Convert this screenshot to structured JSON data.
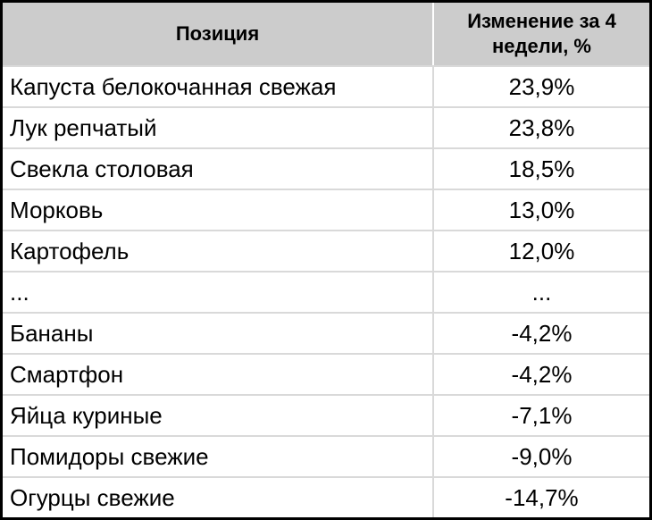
{
  "table": {
    "headers": {
      "position": "Позиция",
      "change": "Изменение за 4 недели, %"
    },
    "rows": [
      {
        "position": "Капуста белокочанная свежая",
        "change": "23,9%"
      },
      {
        "position": "Лук репчатый",
        "change": "23,8%"
      },
      {
        "position": "Свекла столовая",
        "change": "18,5%"
      },
      {
        "position": "Морковь",
        "change": "13,0%"
      },
      {
        "position": "Картофель",
        "change": "12,0%"
      },
      {
        "position": "...",
        "change": "..."
      },
      {
        "position": "Бананы",
        "change": "-4,2%"
      },
      {
        "position": "Смартфон",
        "change": "-4,2%"
      },
      {
        "position": "Яйца куриные",
        "change": "-7,1%"
      },
      {
        "position": "Помидоры свежие",
        "change": "-9,0%"
      },
      {
        "position": "Огурцы свежие",
        "change": "-14,7%"
      }
    ],
    "colors": {
      "header_background": "#cccccc",
      "grid_line": "#d9d9d9",
      "outer_border": "#000000"
    }
  }
}
